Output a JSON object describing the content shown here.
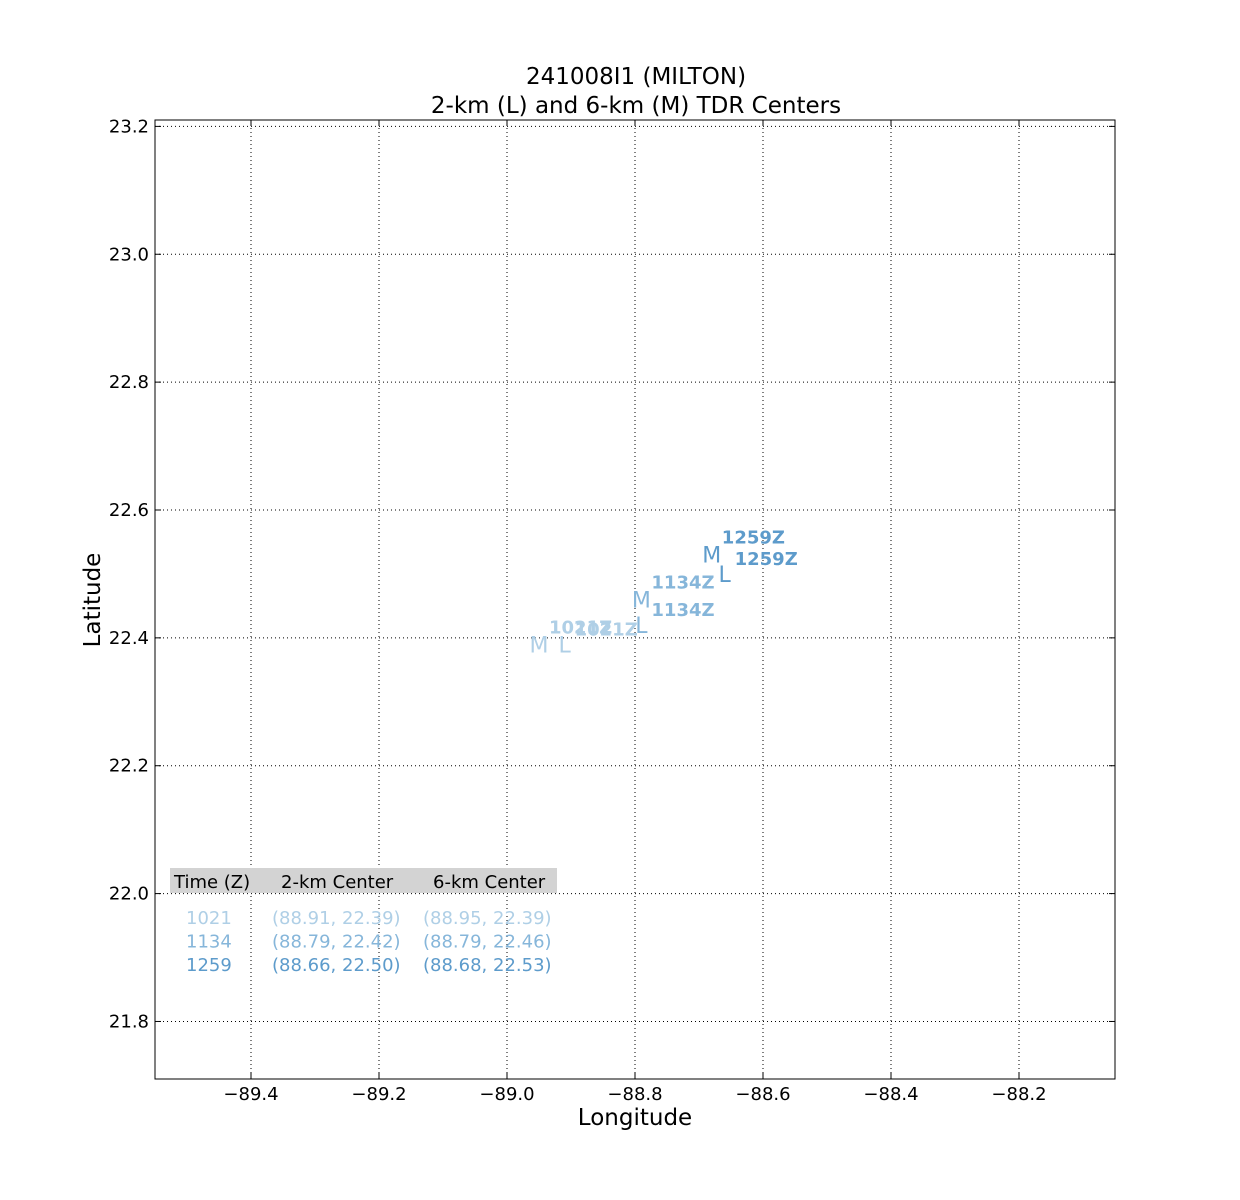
{
  "chart_data": {
    "type": "scatter",
    "title": "241008I1 (MILTON)",
    "subtitle": "2-km (L) and 6-km (M) TDR Centers",
    "xlabel": "Longitude",
    "ylabel": "Latitude",
    "xlim": [
      -89.55,
      -88.05
    ],
    "ylim": [
      21.71,
      23.21
    ],
    "xticks": [
      -89.4,
      -89.2,
      -89.0,
      -88.8,
      -88.6,
      -88.4,
      -88.2
    ],
    "xtick_labels": [
      "−89.4",
      "−89.2",
      "−89.0",
      "−88.8",
      "−88.6",
      "−88.4",
      "−88.2"
    ],
    "yticks": [
      21.8,
      22.0,
      22.2,
      22.4,
      22.6,
      22.8,
      23.0,
      23.2
    ],
    "ytick_labels": [
      "21.8",
      "22.0",
      "22.2",
      "22.4",
      "22.6",
      "22.8",
      "23.0",
      "23.2"
    ],
    "grid": true,
    "marker_symbols": {
      "two_km": "L",
      "six_km": "M"
    },
    "series": [
      {
        "time": "1021",
        "time_label": "1021Z",
        "color": "#afcfe6",
        "two_km": {
          "x": -88.91,
          "y": 22.39
        },
        "six_km": {
          "x": -88.95,
          "y": 22.39
        }
      },
      {
        "time": "1134",
        "time_label": "1134Z",
        "color": "#86b6da",
        "two_km": {
          "x": -88.79,
          "y": 22.42
        },
        "six_km": {
          "x": -88.79,
          "y": 22.46
        }
      },
      {
        "time": "1259",
        "time_label": "1259Z",
        "color": "#5d9bcb",
        "two_km": {
          "x": -88.66,
          "y": 22.5
        },
        "six_km": {
          "x": -88.68,
          "y": 22.53
        }
      }
    ],
    "table": {
      "headers": [
        "Time (Z)",
        "2-km Center",
        "6-km Center"
      ],
      "rows": [
        {
          "time": "1021",
          "two_km": "(88.91, 22.39)",
          "six_km": "(88.95, 22.39)",
          "color": "#afcfe6"
        },
        {
          "time": "1134",
          "two_km": "(88.79, 22.42)",
          "six_km": "(88.79, 22.46)",
          "color": "#86b6da"
        },
        {
          "time": "1259",
          "two_km": "(88.66, 22.50)",
          "six_km": "(88.68, 22.53)",
          "color": "#5d9bcb"
        }
      ]
    }
  }
}
